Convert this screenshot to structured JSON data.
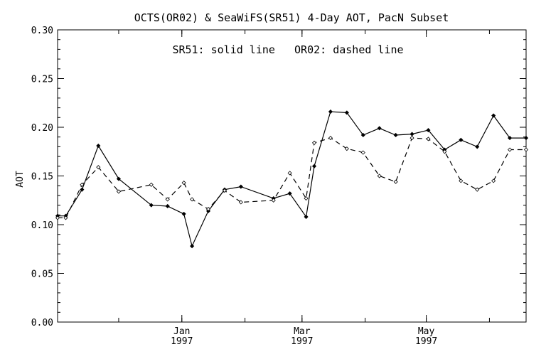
{
  "chart_data": {
    "type": "line",
    "title": "OCTS(OR02) & SeaWiFS(SR51) 4-Day AOT, PacN Subset",
    "annotation": "SR51: solid line   OR02: dashed line",
    "xlabel": "",
    "ylabel": "AOT",
    "ylim": [
      0.0,
      0.3
    ],
    "yticks": [
      "0.00",
      "0.05",
      "0.10",
      "0.15",
      "0.20",
      "0.25",
      "0.30"
    ],
    "xticks": [
      {
        "month": "Jan",
        "year": "1997"
      },
      {
        "month": "Mar",
        "year": "1997"
      },
      {
        "month": "May",
        "year": "1997"
      }
    ],
    "grid": false,
    "series": [
      {
        "name": "SR51",
        "style": "solid",
        "x": [
          "1996-11-01",
          "1996-11-05",
          "1996-11-13",
          "1996-11-21",
          "1996-12-01",
          "1996-12-17",
          "1996-12-25",
          "1997-01-02",
          "1997-01-06",
          "1997-01-14",
          "1997-01-22",
          "1997-01-30",
          "1997-02-15",
          "1997-02-23",
          "1997-03-03",
          "1997-03-07",
          "1997-03-15",
          "1997-03-23",
          "1997-03-31",
          "1997-04-08",
          "1997-04-16",
          "1997-04-24",
          "1997-05-02",
          "1997-05-10",
          "1997-05-18",
          "1997-05-26",
          "1997-06-03",
          "1997-06-11",
          "1997-06-19"
        ],
        "values": [
          0.109,
          0.109,
          0.136,
          0.181,
          0.147,
          0.12,
          0.119,
          0.111,
          0.078,
          0.114,
          0.136,
          0.139,
          0.127,
          0.132,
          0.108,
          0.16,
          0.216,
          0.215,
          0.192,
          0.199,
          0.192,
          0.193,
          0.197,
          0.177,
          0.187,
          0.18,
          0.212,
          0.189,
          0.189
        ]
      },
      {
        "name": "OR02",
        "style": "dashed",
        "x": [
          "1996-11-01",
          "1996-11-05",
          "1996-11-13",
          "1996-11-21",
          "1996-12-01",
          "1996-12-17",
          "1996-12-25",
          "1997-01-02",
          "1997-01-06",
          "1997-01-14",
          "1997-01-22",
          "1997-01-30",
          "1997-02-15",
          "1997-02-23",
          "1997-03-03",
          "1997-03-07",
          "1997-03-15",
          "1997-03-23",
          "1997-03-31",
          "1997-04-08",
          "1997-04-16",
          "1997-04-24",
          "1997-05-02",
          "1997-05-10",
          "1997-05-18",
          "1997-05-26",
          "1997-06-03",
          "1997-06-11",
          "1997-06-19"
        ],
        "values": [
          0.107,
          0.107,
          0.141,
          0.159,
          0.134,
          0.141,
          0.126,
          0.143,
          0.126,
          0.116,
          0.135,
          0.123,
          0.125,
          0.153,
          0.127,
          0.184,
          0.189,
          0.178,
          0.174,
          0.15,
          0.144,
          0.189,
          0.188,
          0.175,
          0.145,
          0.136,
          0.145,
          0.177,
          0.177
        ]
      }
    ]
  }
}
